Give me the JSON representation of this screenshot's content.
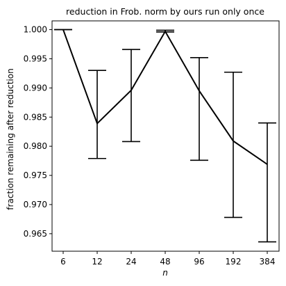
{
  "chart_data": {
    "type": "line",
    "title": "reduction in Frob. norm by ours run only once",
    "xlabel": "n",
    "ylabel": "fraction remaining after reduction",
    "categories": [
      "6",
      "12",
      "24",
      "48",
      "96",
      "192",
      "384"
    ],
    "series": [
      {
        "values": [
          1.0,
          0.9839,
          0.9896,
          0.9997,
          0.9895,
          0.9809,
          0.9769
        ],
        "error_lower": [
          1.0,
          0.9779,
          0.9808,
          0.9996,
          0.9776,
          0.9678,
          0.9636
        ],
        "error_upper": [
          1.0,
          0.993,
          0.9966,
          0.9999,
          0.9952,
          0.9927,
          0.984
        ],
        "color": "#000000"
      }
    ],
    "ylim": [
      0.962,
      1.0015
    ],
    "yticks": [
      "0.965",
      "0.970",
      "0.975",
      "0.980",
      "0.985",
      "0.990",
      "0.995",
      "1.000"
    ],
    "ytick_values": [
      0.965,
      0.97,
      0.975,
      0.98,
      0.985,
      0.99,
      0.995,
      1.0
    ],
    "grid": false,
    "legend": "none"
  }
}
